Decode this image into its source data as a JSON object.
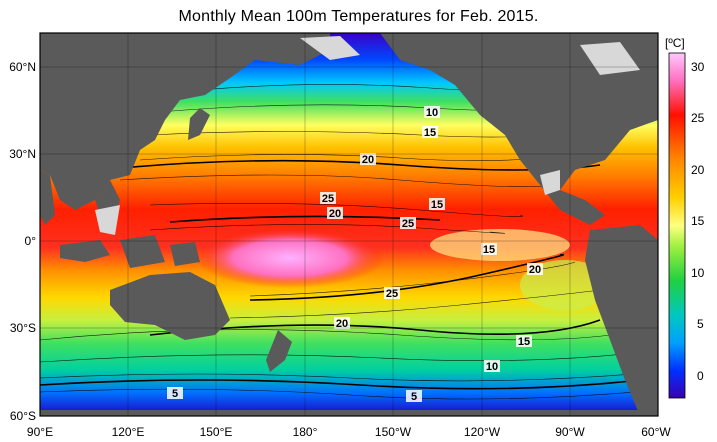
{
  "title": "Monthly Mean 100m Temperatures for Feb. 2015.",
  "colorbar": {
    "unit": "[ºC]",
    "ticks": [
      "30",
      "25",
      "20",
      "15",
      "10",
      "5",
      "0"
    ]
  },
  "axes": {
    "lat_labels": [
      "60°N",
      "30°N",
      "0°",
      "30°S",
      "60°S"
    ],
    "lon_labels": [
      "90°E",
      "120°E",
      "150°E",
      "180°",
      "150°W",
      "120°W",
      "90°W",
      "60°W"
    ]
  },
  "contour_labels": [
    {
      "text": "10"
    },
    {
      "text": "15"
    },
    {
      "text": "20"
    },
    {
      "text": "25"
    },
    {
      "text": "20"
    },
    {
      "text": "15"
    },
    {
      "text": "25"
    },
    {
      "text": "15"
    },
    {
      "text": "20"
    },
    {
      "text": "25"
    },
    {
      "text": "20"
    },
    {
      "text": "15"
    },
    {
      "text": "10"
    },
    {
      "text": "5"
    },
    {
      "text": "5"
    }
  ],
  "colors": {
    "land": "#5a5a5a",
    "ice": "#d8d8d8",
    "scale": [
      "#3a00c8",
      "#0048ff",
      "#00b4ff",
      "#00e0a0",
      "#40e060",
      "#a8e040",
      "#ffff60",
      "#ffc000",
      "#ff7a00",
      "#ff2000",
      "#ff70c0",
      "#ffb0ff"
    ]
  }
}
